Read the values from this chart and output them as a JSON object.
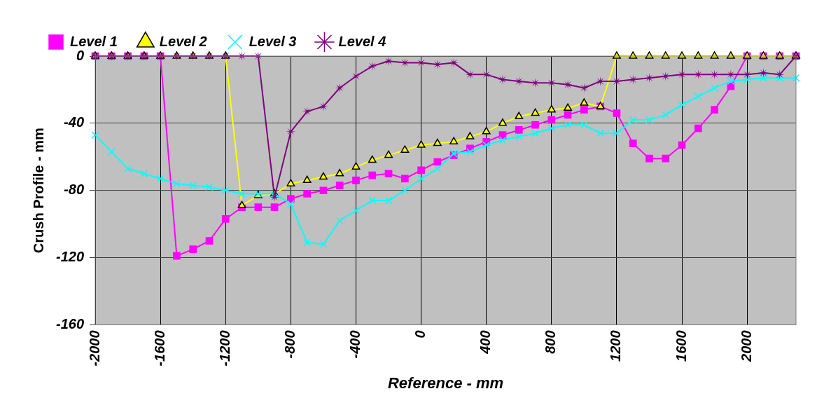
{
  "chart_data": {
    "type": "line",
    "xlabel": "Reference - mm",
    "ylabel": "Crush Profile - mm",
    "x": [
      -2000,
      -1900,
      -1800,
      -1700,
      -1600,
      -1500,
      -1400,
      -1300,
      -1200,
      -1100,
      -1000,
      -900,
      -800,
      -700,
      -600,
      -500,
      -400,
      -300,
      -200,
      -100,
      0,
      100,
      200,
      300,
      400,
      500,
      600,
      700,
      800,
      900,
      1000,
      1100,
      1200,
      1300,
      1400,
      1500,
      1600,
      1700,
      1800,
      1900,
      2000,
      2100,
      2200,
      2300
    ],
    "series": [
      {
        "name": "Level 1",
        "color": "#ff00ff",
        "marker": "square",
        "values": [
          0,
          0,
          0,
          0,
          0,
          -119,
          -115,
          -110,
          -97,
          -90,
          -90,
          -90,
          -85,
          -82,
          -80,
          -77,
          -74,
          -71,
          -70,
          -73,
          -68,
          -63,
          -59,
          -55,
          -51,
          -47,
          -44,
          -41,
          -38,
          -35,
          -32,
          -30,
          -34,
          -52,
          -61,
          -61,
          -53,
          -43,
          -32,
          -18,
          0,
          0,
          0,
          0
        ]
      },
      {
        "name": "Level 2",
        "color": "#ffff00",
        "marker": "triangle",
        "values": [
          0,
          0,
          0,
          0,
          0,
          0,
          0,
          0,
          0,
          -89,
          -83,
          -82,
          -76,
          -74,
          -72,
          -70,
          -66,
          -62,
          -59,
          -56,
          -53,
          -52,
          -51,
          -48,
          -45,
          -40,
          -36,
          -34,
          -32,
          -31,
          -28,
          -30,
          0,
          0,
          0,
          0,
          0,
          0,
          0,
          0,
          0,
          0,
          0,
          0
        ]
      },
      {
        "name": "Level 3",
        "color": "#00ffff",
        "marker": "cross",
        "values": [
          -47,
          -57,
          -67,
          -70,
          -73,
          -76,
          -77,
          -78,
          -80,
          -82,
          -82,
          -82,
          -88,
          -111,
          -112,
          -98,
          -92,
          -86,
          -86,
          -80,
          -73,
          -67,
          -58,
          -57,
          -53,
          -50,
          -48,
          -46,
          -43,
          -41,
          -41,
          -46,
          -46,
          -38,
          -38,
          -35,
          -29,
          -24,
          -19,
          -15,
          -14,
          -13,
          -13,
          -13
        ]
      },
      {
        "name": "Level 4",
        "color": "#800080",
        "marker": "star",
        "values": [
          0,
          0,
          0,
          0,
          0,
          0,
          0,
          0,
          0,
          0,
          0,
          -84,
          -45,
          -33,
          -30,
          -19,
          -12,
          -6,
          -3,
          -4,
          -4,
          -5,
          -4,
          -11,
          -11,
          -14,
          -15,
          -16,
          -16,
          -17,
          -19,
          -15,
          -15,
          -14,
          -13,
          -12,
          -11,
          -11,
          -11,
          -11,
          -11,
          -10,
          -11,
          0
        ]
      }
    ],
    "xlim": [
      -2000,
      2300
    ],
    "xticks": [
      -2000,
      -1600,
      -1200,
      -800,
      -400,
      0,
      400,
      800,
      1200,
      1600,
      2000
    ],
    "ylim": [
      -160,
      0
    ],
    "yticks": [
      -160,
      -120,
      -80,
      -40,
      0
    ],
    "grid": true,
    "legend": "top left",
    "line_style": "solid"
  }
}
